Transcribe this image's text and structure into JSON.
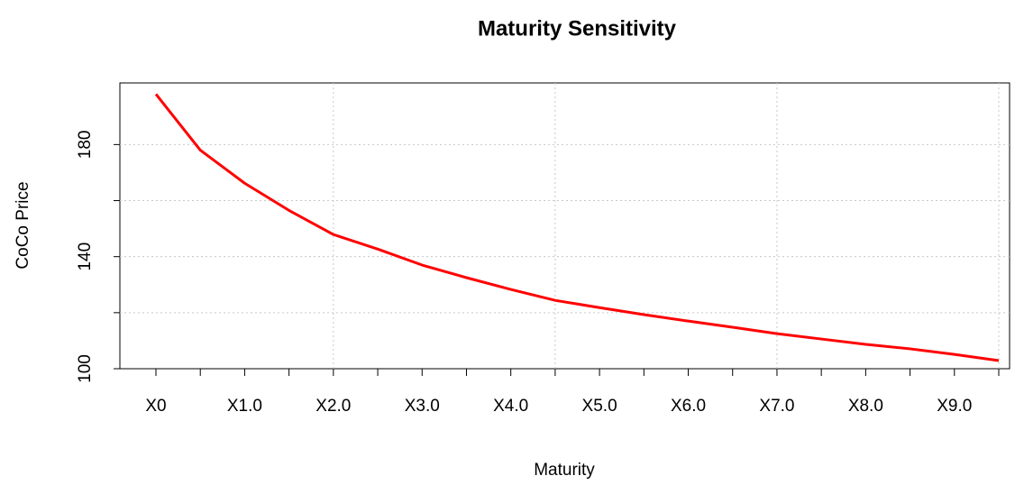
{
  "chart_data": {
    "type": "line",
    "title": "Maturity Sensitivity",
    "x_label": "Maturity",
    "y_label": "CoCo Price",
    "categories": [
      "X0",
      null,
      "X1.0",
      null,
      "X2.0",
      null,
      "X3.0",
      null,
      "X4.0",
      null,
      "X5.0",
      null,
      "X6.0",
      null,
      "X7.0",
      null,
      "X8.0",
      null,
      "X9.0",
      null
    ],
    "values": [
      198,
      178,
      166.2,
      156.5,
      147.9,
      142.7,
      137,
      132.5,
      128.3,
      124.4,
      121.8,
      119.3,
      117,
      114.8,
      112.5,
      110.6,
      108.7,
      107.1,
      105.1,
      102.9
    ],
    "color": "#ff0000",
    "ylim": [
      100,
      202
    ],
    "yticks": [
      100,
      140,
      180
    ],
    "yticks_minor": [
      120,
      160
    ],
    "grid": true
  }
}
